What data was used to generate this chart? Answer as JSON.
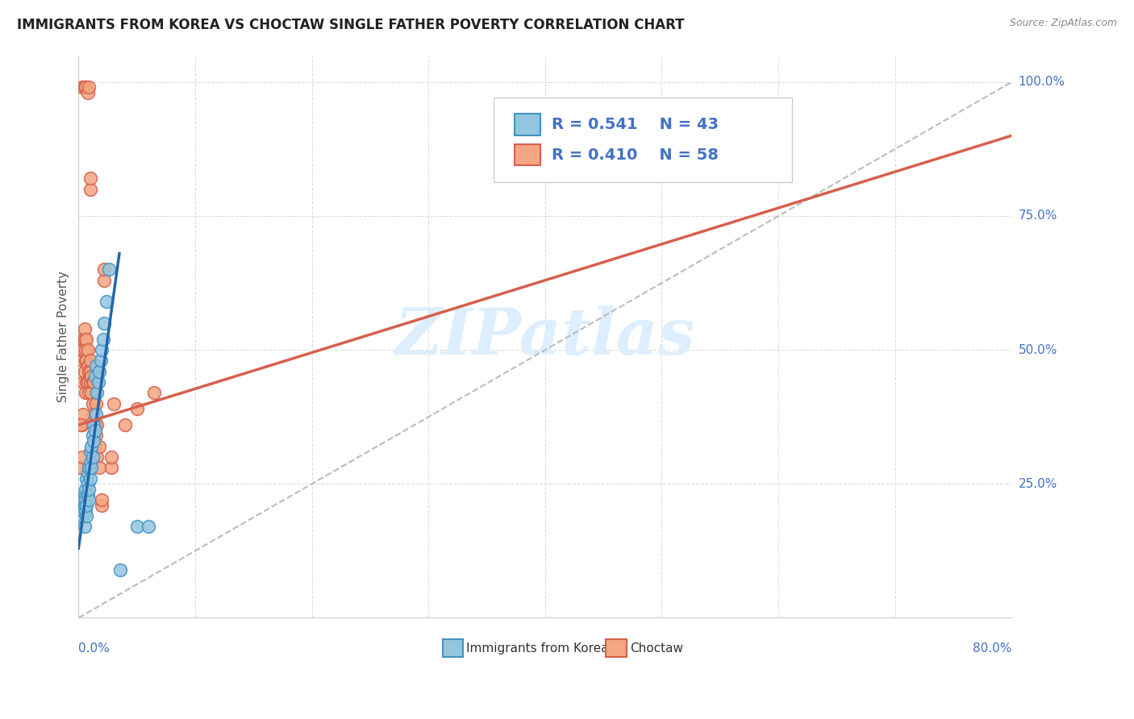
{
  "title": "IMMIGRANTS FROM KOREA VS CHOCTAW SINGLE FATHER POVERTY CORRELATION CHART",
  "source": "Source: ZipAtlas.com",
  "ylabel": "Single Father Poverty",
  "legend_label1": "Immigrants from Korea",
  "legend_label2": "Choctaw",
  "R1": 0.541,
  "N1": 43,
  "R2": 0.41,
  "N2": 58,
  "blue_scatter_color": "#92c5de",
  "blue_edge_color": "#4393c3",
  "pink_scatter_color": "#f4a582",
  "pink_edge_color": "#d6604d",
  "blue_line_color": "#2166ac",
  "pink_line_color": "#d6604d",
  "axis_label_color": "#4472c4",
  "title_color": "#222222",
  "watermark_color": "#ddeeff",
  "grid_color": "#dddddd",
  "diag_color": "#bbbbbb",
  "scatter_blue": [
    [
      0.003,
      0.19
    ],
    [
      0.004,
      0.2
    ],
    [
      0.004,
      0.22
    ],
    [
      0.005,
      0.17
    ],
    [
      0.005,
      0.21
    ],
    [
      0.005,
      0.23
    ],
    [
      0.006,
      0.2
    ],
    [
      0.006,
      0.22
    ],
    [
      0.006,
      0.24
    ],
    [
      0.007,
      0.19
    ],
    [
      0.007,
      0.21
    ],
    [
      0.007,
      0.26
    ],
    [
      0.008,
      0.23
    ],
    [
      0.008,
      0.25
    ],
    [
      0.008,
      0.27
    ],
    [
      0.009,
      0.22
    ],
    [
      0.009,
      0.24
    ],
    [
      0.009,
      0.28
    ],
    [
      0.01,
      0.26
    ],
    [
      0.01,
      0.29
    ],
    [
      0.01,
      0.31
    ],
    [
      0.011,
      0.28
    ],
    [
      0.011,
      0.32
    ],
    [
      0.012,
      0.3
    ],
    [
      0.012,
      0.34
    ],
    [
      0.013,
      0.33
    ],
    [
      0.013,
      0.36
    ],
    [
      0.014,
      0.35
    ],
    [
      0.014,
      0.45
    ],
    [
      0.015,
      0.38
    ],
    [
      0.015,
      0.47
    ],
    [
      0.016,
      0.42
    ],
    [
      0.017,
      0.44
    ],
    [
      0.018,
      0.46
    ],
    [
      0.019,
      0.48
    ],
    [
      0.02,
      0.5
    ],
    [
      0.021,
      0.52
    ],
    [
      0.022,
      0.55
    ],
    [
      0.024,
      0.59
    ],
    [
      0.026,
      0.65
    ],
    [
      0.036,
      0.09
    ],
    [
      0.05,
      0.17
    ],
    [
      0.06,
      0.17
    ]
  ],
  "scatter_pink": [
    [
      0.003,
      0.99
    ],
    [
      0.005,
      0.99
    ],
    [
      0.006,
      0.99
    ],
    [
      0.008,
      0.98
    ],
    [
      0.009,
      0.99
    ],
    [
      0.01,
      0.8
    ],
    [
      0.01,
      0.82
    ],
    [
      0.002,
      0.5
    ],
    [
      0.003,
      0.48
    ],
    [
      0.003,
      0.52
    ],
    [
      0.004,
      0.44
    ],
    [
      0.004,
      0.5
    ],
    [
      0.005,
      0.46
    ],
    [
      0.005,
      0.52
    ],
    [
      0.005,
      0.54
    ],
    [
      0.006,
      0.42
    ],
    [
      0.006,
      0.48
    ],
    [
      0.006,
      0.5
    ],
    [
      0.007,
      0.44
    ],
    [
      0.007,
      0.48
    ],
    [
      0.007,
      0.52
    ],
    [
      0.008,
      0.44
    ],
    [
      0.008,
      0.47
    ],
    [
      0.008,
      0.5
    ],
    [
      0.009,
      0.42
    ],
    [
      0.009,
      0.46
    ],
    [
      0.01,
      0.44
    ],
    [
      0.01,
      0.46
    ],
    [
      0.01,
      0.48
    ],
    [
      0.011,
      0.42
    ],
    [
      0.011,
      0.45
    ],
    [
      0.012,
      0.4
    ],
    [
      0.012,
      0.44
    ],
    [
      0.013,
      0.38
    ],
    [
      0.013,
      0.44
    ],
    [
      0.014,
      0.32
    ],
    [
      0.014,
      0.36
    ],
    [
      0.015,
      0.34
    ],
    [
      0.015,
      0.4
    ],
    [
      0.016,
      0.3
    ],
    [
      0.016,
      0.36
    ],
    [
      0.018,
      0.28
    ],
    [
      0.018,
      0.32
    ],
    [
      0.02,
      0.21
    ],
    [
      0.02,
      0.22
    ],
    [
      0.022,
      0.63
    ],
    [
      0.022,
      0.65
    ],
    [
      0.028,
      0.28
    ],
    [
      0.028,
      0.3
    ],
    [
      0.03,
      0.4
    ],
    [
      0.04,
      0.36
    ],
    [
      0.05,
      0.39
    ],
    [
      0.065,
      0.42
    ],
    [
      0.003,
      0.36
    ],
    [
      0.004,
      0.38
    ],
    [
      0.002,
      0.36
    ],
    [
      0.002,
      0.28
    ],
    [
      0.003,
      0.3
    ]
  ],
  "blue_line_x": [
    0.0,
    0.035
  ],
  "blue_line_y": [
    0.13,
    0.68
  ],
  "pink_line_x": [
    0.0,
    0.8
  ],
  "pink_line_y": [
    0.36,
    0.9
  ],
  "diag_line_x": [
    0.0,
    0.8
  ],
  "diag_line_y": [
    0.0,
    1.0
  ],
  "xlim": [
    0.0,
    0.8
  ],
  "ylim": [
    0.0,
    1.05
  ]
}
